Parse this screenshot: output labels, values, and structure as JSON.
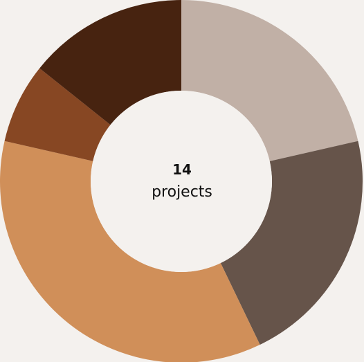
{
  "chart_data": {
    "type": "pie",
    "variant": "donut",
    "slices": [
      {
        "value": 3,
        "color": "#c1b0a6"
      },
      {
        "value": 3,
        "color": "#66544a"
      },
      {
        "value": 5,
        "color": "#d08f59"
      },
      {
        "value": 1,
        "color": "#874723"
      },
      {
        "value": 2,
        "color": "#472310"
      }
    ],
    "total": 14,
    "center": {
      "value": "14",
      "label": "projects"
    },
    "background": "#f4f1ee"
  }
}
